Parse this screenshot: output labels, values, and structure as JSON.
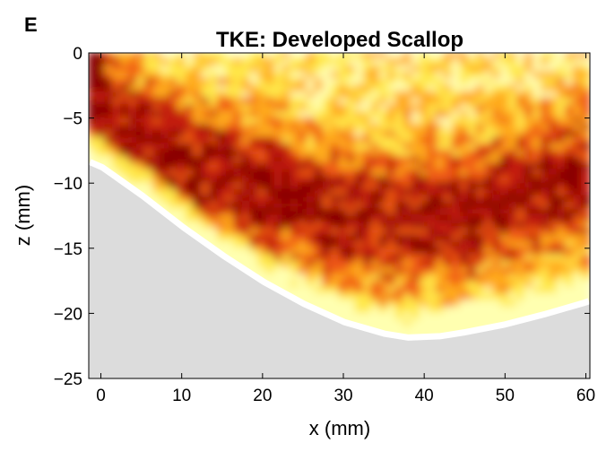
{
  "panel_label": "E",
  "chart_data": {
    "type": "heatmap",
    "title": "TKE: Developed Scallop",
    "xlabel": "x (mm)",
    "ylabel": "z (mm)",
    "xlim": [
      -1.5,
      60.5
    ],
    "ylim": [
      -25,
      0
    ],
    "x_ticks": [
      0,
      10,
      20,
      30,
      40,
      50,
      60
    ],
    "y_ticks": [
      0,
      -5,
      -10,
      -15,
      -20,
      -25
    ],
    "x_tick_labels": [
      "0",
      "10",
      "20",
      "30",
      "40",
      "50",
      "60"
    ],
    "y_tick_labels": [
      "0",
      "−5",
      "−10",
      "−15",
      "−20",
      "−25"
    ],
    "colormap": [
      "#ffffb0",
      "#ffe84a",
      "#ffab1c",
      "#f05a12",
      "#c31a0e",
      "#8a0000"
    ],
    "bed_color": "#dcdcdc",
    "boundary_color": "#ffffff",
    "colorbar": false,
    "bed_profile": {
      "x": [
        -1.5,
        0,
        5,
        10,
        15,
        20,
        25,
        30,
        35,
        38,
        42,
        45,
        50,
        55,
        60,
        60.5
      ],
      "z": [
        -8.6,
        -9.0,
        -11.2,
        -13.6,
        -15.8,
        -17.8,
        -19.5,
        -20.9,
        -21.8,
        -22.1,
        -22.0,
        -21.7,
        -21.1,
        -20.3,
        -19.4,
        -19.3
      ]
    },
    "high_tke_band": {
      "x": [
        -1,
        5,
        10,
        15,
        20,
        25,
        30,
        35,
        40,
        45,
        50,
        55,
        60
      ],
      "z_center": [
        -4,
        -6.5,
        -8.5,
        -9.5,
        -10.5,
        -11.5,
        -12.5,
        -12.8,
        -12.8,
        -12.5,
        -11.5,
        -10.5,
        -9.5
      ]
    }
  }
}
